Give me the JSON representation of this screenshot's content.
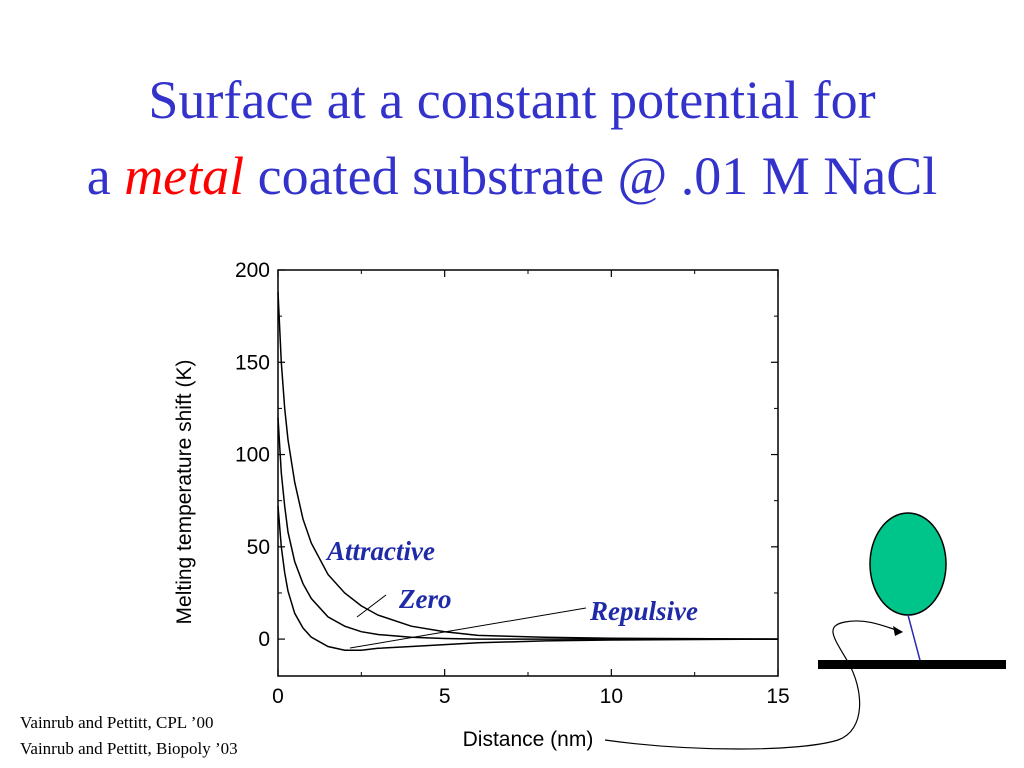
{
  "slide": {
    "title_line1": "Surface at a constant potential for",
    "title_line2_pre": "a ",
    "title_line2_em": "metal",
    "title_line2_post": " coated substrate @ .01 M NaCl",
    "citations": [
      "Vainrub and Pettitt, CPL ’00",
      "Vainrub and Pettitt, Biopoly ’03"
    ]
  },
  "colors": {
    "title": "#3333cc",
    "emphasis": "#ff0000",
    "curve_label": "#1f2aa8",
    "bead_fill": "#00c58a",
    "linker": "#2b2bb0",
    "surface": "#000000"
  },
  "chart_data": {
    "type": "line",
    "xlabel": "Distance (nm)",
    "ylabel": "Melting temperature shift (K)",
    "xlim": [
      0,
      15
    ],
    "ylim": [
      -20,
      200
    ],
    "xticks": [
      0,
      5,
      10,
      15
    ],
    "yticks": [
      0,
      50,
      100,
      150,
      200
    ],
    "grid": false,
    "series": [
      {
        "name": "Attractive",
        "x": [
          0,
          0.1,
          0.2,
          0.3,
          0.5,
          0.75,
          1,
          1.5,
          2,
          2.5,
          3,
          4,
          5,
          6,
          8,
          10,
          15
        ],
        "y": [
          188,
          150,
          125,
          108,
          85,
          65,
          52,
          35,
          25,
          18,
          13,
          7,
          4,
          2,
          1,
          0.5,
          0
        ]
      },
      {
        "name": "Zero",
        "x": [
          0,
          0.1,
          0.2,
          0.3,
          0.5,
          0.75,
          1,
          1.5,
          2,
          2.5,
          3,
          4,
          5,
          6,
          8,
          10,
          15
        ],
        "y": [
          120,
          90,
          72,
          58,
          42,
          30,
          22,
          12,
          7,
          4,
          2.5,
          1,
          0.3,
          0,
          0,
          0,
          0
        ]
      },
      {
        "name": "Repulsive",
        "x": [
          0,
          0.1,
          0.2,
          0.3,
          0.5,
          0.75,
          1,
          1.5,
          2,
          2.5,
          3,
          4,
          5,
          6,
          8,
          10,
          15
        ],
        "y": [
          72,
          50,
          36,
          26,
          14,
          6,
          1,
          -4,
          -6,
          -6,
          -5,
          -4,
          -3,
          -2,
          -1,
          -0.5,
          0
        ]
      }
    ],
    "annotations": [
      {
        "text": "Attractive",
        "series": "Attractive"
      },
      {
        "text": "Zero",
        "series": "Zero"
      },
      {
        "text": "Repulsive",
        "series": "Repulsive"
      }
    ]
  }
}
